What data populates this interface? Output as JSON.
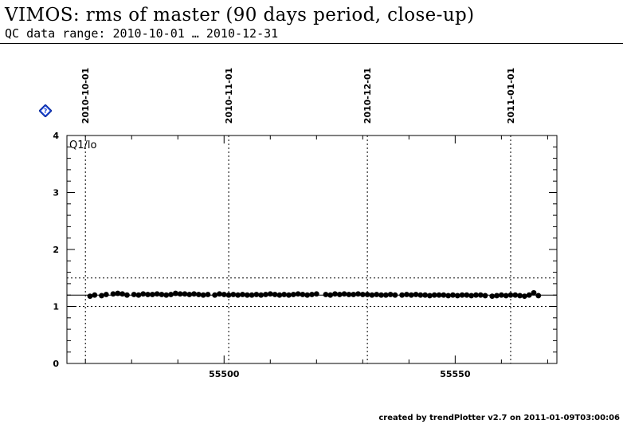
{
  "header": {
    "title": "VIMOS: rms of master (90 days period, close-up)",
    "subtitle": "QC data range: 2010-10-01 … 2010-12-31"
  },
  "footer": {
    "text": "created by trendPlotter v2.7 on 2011-01-09T03:00:06"
  },
  "icons": {
    "help": "help-diamond-icon"
  },
  "colors": {
    "help_icon": "#1a44d6",
    "points": "#000000",
    "axes": "#000000"
  },
  "chart_data": {
    "type": "scatter",
    "panel_label": "Q1/lo",
    "x_ticks": [
      55500,
      55550
    ],
    "y_ticks": [
      0,
      1,
      2,
      3,
      4
    ],
    "xlim": [
      55466,
      55572
    ],
    "ylim": [
      0,
      4
    ],
    "reference_line": 1.2,
    "threshold_lines": [
      1.0,
      1.5
    ],
    "date_markers": [
      {
        "label": "2010-10-01",
        "x": 55470
      },
      {
        "label": "2010-11-01",
        "x": 55501
      },
      {
        "label": "2010-12-01",
        "x": 55531
      },
      {
        "label": "2011-01-01",
        "x": 55562
      }
    ],
    "points": [
      [
        55471.0,
        1.18
      ],
      [
        55472.0,
        1.2
      ],
      [
        55473.5,
        1.19
      ],
      [
        55474.5,
        1.21
      ],
      [
        55476.0,
        1.22
      ],
      [
        55477.0,
        1.23
      ],
      [
        55478.0,
        1.22
      ],
      [
        55479.0,
        1.2
      ],
      [
        55480.5,
        1.21
      ],
      [
        55481.5,
        1.2
      ],
      [
        55482.5,
        1.22
      ],
      [
        55483.5,
        1.21
      ],
      [
        55484.5,
        1.21
      ],
      [
        55485.5,
        1.22
      ],
      [
        55486.5,
        1.21
      ],
      [
        55487.5,
        1.2
      ],
      [
        55488.5,
        1.21
      ],
      [
        55489.5,
        1.23
      ],
      [
        55490.5,
        1.22
      ],
      [
        55491.5,
        1.22
      ],
      [
        55492.5,
        1.21
      ],
      [
        55493.5,
        1.22
      ],
      [
        55494.5,
        1.21
      ],
      [
        55495.5,
        1.2
      ],
      [
        55496.5,
        1.21
      ],
      [
        55498.0,
        1.2
      ],
      [
        55499.0,
        1.22
      ],
      [
        55500.0,
        1.21
      ],
      [
        55501.0,
        1.2
      ],
      [
        55502.0,
        1.21
      ],
      [
        55503.0,
        1.2
      ],
      [
        55504.0,
        1.21
      ],
      [
        55505.0,
        1.2
      ],
      [
        55506.0,
        1.2
      ],
      [
        55507.0,
        1.21
      ],
      [
        55508.0,
        1.2
      ],
      [
        55509.0,
        1.21
      ],
      [
        55510.0,
        1.22
      ],
      [
        55511.0,
        1.21
      ],
      [
        55512.0,
        1.2
      ],
      [
        55513.0,
        1.21
      ],
      [
        55514.0,
        1.2
      ],
      [
        55515.0,
        1.21
      ],
      [
        55516.0,
        1.22
      ],
      [
        55517.0,
        1.21
      ],
      [
        55518.0,
        1.2
      ],
      [
        55519.0,
        1.21
      ],
      [
        55520.0,
        1.22
      ],
      [
        55522.0,
        1.21
      ],
      [
        55523.0,
        1.2
      ],
      [
        55524.0,
        1.22
      ],
      [
        55525.0,
        1.21
      ],
      [
        55526.0,
        1.22
      ],
      [
        55527.0,
        1.21
      ],
      [
        55528.0,
        1.21
      ],
      [
        55529.0,
        1.22
      ],
      [
        55530.0,
        1.21
      ],
      [
        55531.0,
        1.21
      ],
      [
        55532.0,
        1.2
      ],
      [
        55533.0,
        1.21
      ],
      [
        55534.0,
        1.2
      ],
      [
        55535.0,
        1.2
      ],
      [
        55536.0,
        1.21
      ],
      [
        55537.0,
        1.2
      ],
      [
        55538.5,
        1.2
      ],
      [
        55539.5,
        1.21
      ],
      [
        55540.5,
        1.2
      ],
      [
        55541.5,
        1.21
      ],
      [
        55542.5,
        1.2
      ],
      [
        55543.5,
        1.2
      ],
      [
        55544.5,
        1.19
      ],
      [
        55545.5,
        1.2
      ],
      [
        55546.5,
        1.2
      ],
      [
        55547.5,
        1.2
      ],
      [
        55548.5,
        1.19
      ],
      [
        55549.5,
        1.2
      ],
      [
        55550.5,
        1.19
      ],
      [
        55551.5,
        1.2
      ],
      [
        55552.5,
        1.2
      ],
      [
        55553.5,
        1.19
      ],
      [
        55554.5,
        1.2
      ],
      [
        55555.5,
        1.2
      ],
      [
        55556.5,
        1.19
      ],
      [
        55558.0,
        1.18
      ],
      [
        55559.0,
        1.19
      ],
      [
        55560.0,
        1.2
      ],
      [
        55561.0,
        1.19
      ],
      [
        55562.0,
        1.2
      ],
      [
        55563.0,
        1.2
      ],
      [
        55564.0,
        1.19
      ],
      [
        55565.0,
        1.18
      ],
      [
        55566.0,
        1.2
      ],
      [
        55567.0,
        1.24
      ],
      [
        55568.0,
        1.19
      ]
    ]
  }
}
